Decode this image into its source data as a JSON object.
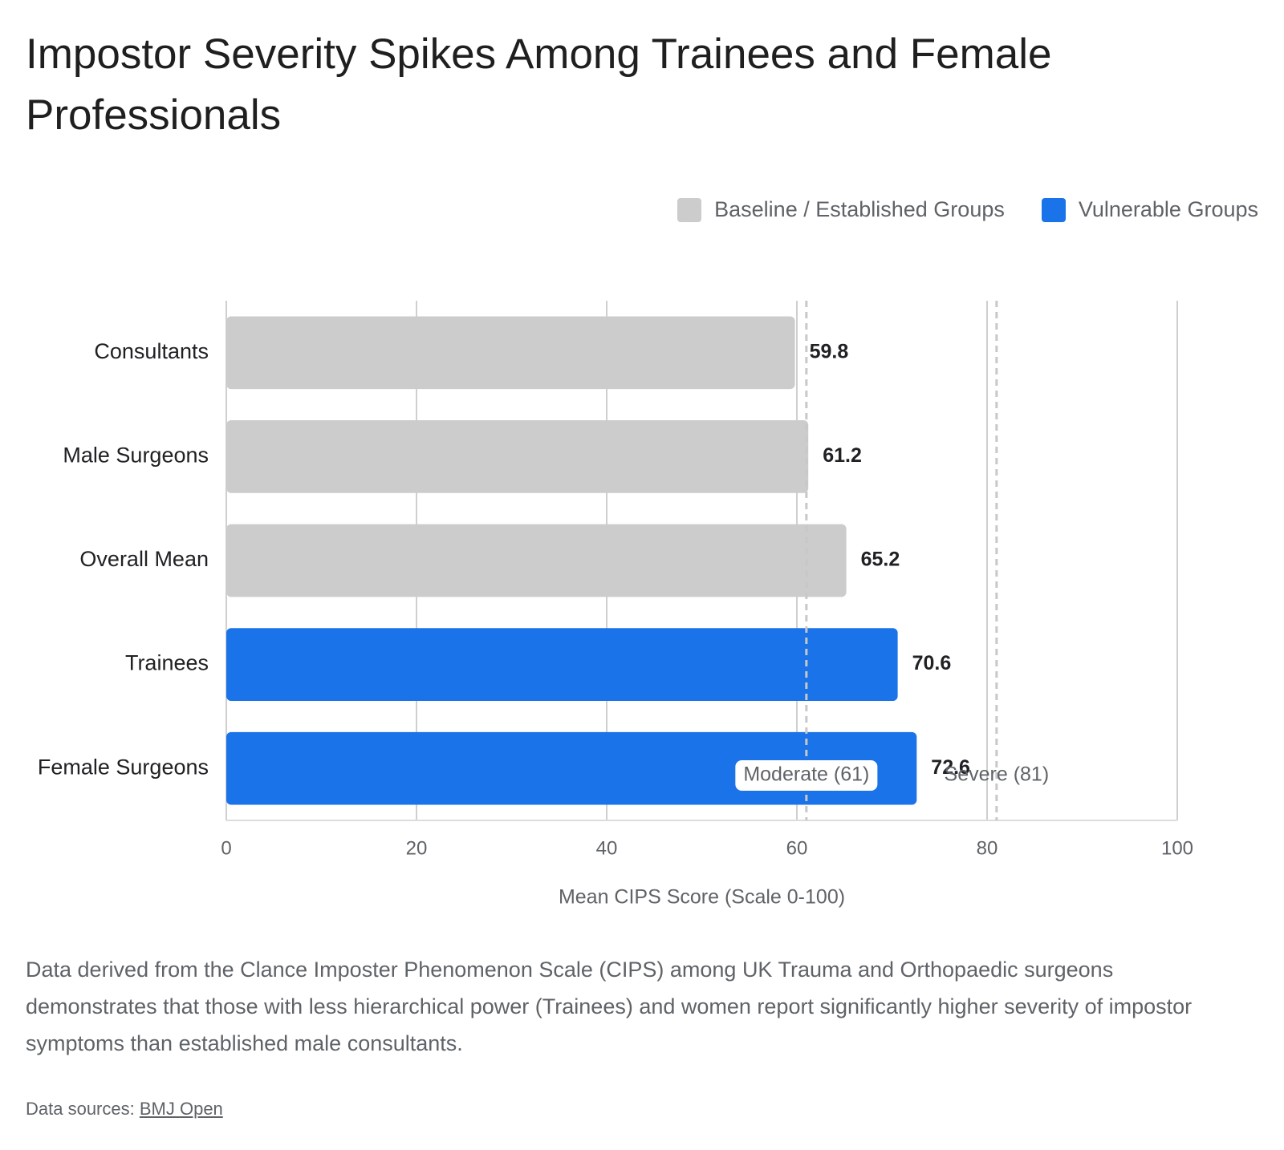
{
  "chart_data": {
    "type": "bar",
    "orientation": "horizontal",
    "title": "Impostor Severity Spikes Among Trainees and Female Professionals",
    "categories": [
      "Consultants",
      "Male Surgeons",
      "Overall Mean",
      "Trainees",
      "Female Surgeons"
    ],
    "series": [
      {
        "name": "Baseline / Established Groups",
        "color": "#cccccc",
        "values": [
          59.8,
          61.2,
          65.2,
          null,
          null
        ]
      },
      {
        "name": "Vulnerable Groups",
        "color": "#1a73e8",
        "values": [
          null,
          null,
          null,
          70.6,
          72.6
        ]
      }
    ],
    "xlabel": "Mean CIPS Score (Scale 0-100)",
    "xlim": [
      0,
      100
    ],
    "xticks": [
      0,
      20,
      40,
      60,
      80,
      100
    ],
    "grid": true,
    "reference_lines": [
      {
        "value": 61,
        "label": "Moderate (61)"
      },
      {
        "value": 81,
        "label": "Severe (81)"
      }
    ],
    "description": "Data derived from the Clance Imposter Phenomenon Scale (CIPS) among UK Trauma and Orthopaedic surgeons demonstrates that those with less hierarchical power (Trainees) and women report significantly higher severity of impostor symptoms than established male consultants.",
    "source_label": "Data sources:",
    "source_link": "BMJ Open"
  }
}
